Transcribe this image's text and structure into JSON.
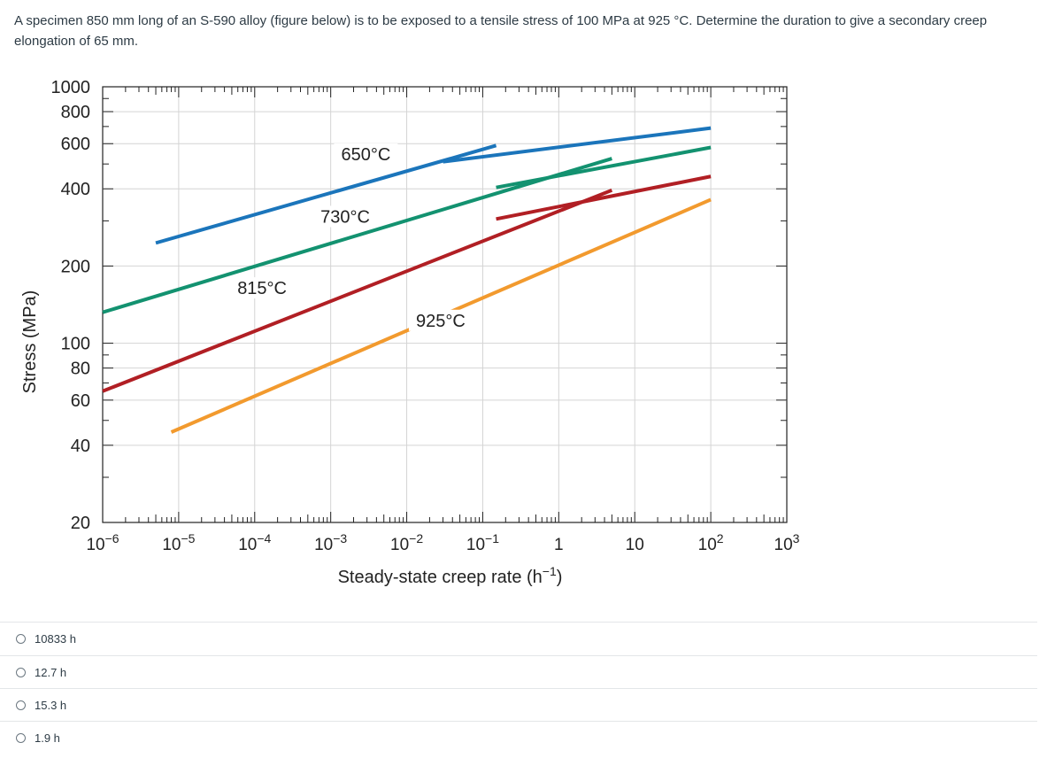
{
  "question": {
    "text": "A specimen 850 mm long of an S-590 alloy (figure below) is to be exposed to a tensile stress of 100 MPa at 925 °C. Determine the duration to give a secondary creep elongation of 65 mm."
  },
  "chart_data": {
    "type": "line",
    "xlabel": "Steady-state creep rate (h",
    "xlabel_sup": "−1",
    "xlabel_end": ")",
    "ylabel": "Stress (MPa)",
    "xscale": "log",
    "yscale": "log",
    "xlim": [
      1e-06,
      1000
    ],
    "ylim": [
      20,
      1000
    ],
    "x_ticks": [
      {
        "value": 1e-06,
        "base": "10",
        "exp": "−6"
      },
      {
        "value": 1e-05,
        "base": "10",
        "exp": "−5"
      },
      {
        "value": 0.0001,
        "base": "10",
        "exp": "−4"
      },
      {
        "value": 0.001,
        "base": "10",
        "exp": "−3"
      },
      {
        "value": 0.01,
        "base": "10",
        "exp": "−2"
      },
      {
        "value": 0.1,
        "base": "10",
        "exp": "−1"
      },
      {
        "value": 1,
        "base": "1",
        "exp": ""
      },
      {
        "value": 10,
        "base": "10",
        "exp": ""
      },
      {
        "value": 100,
        "base": "10",
        "exp": "2"
      },
      {
        "value": 1000,
        "base": "10",
        "exp": "3"
      }
    ],
    "y_ticks": [
      {
        "value": 1000,
        "label": "1000"
      },
      {
        "value": 800,
        "label": "800"
      },
      {
        "value": 600,
        "label": "600"
      },
      {
        "value": 400,
        "label": "400"
      },
      {
        "value": 200,
        "label": "200"
      },
      {
        "value": 100,
        "label": "100"
      },
      {
        "value": 80,
        "label": "80"
      },
      {
        "value": 60,
        "label": "60"
      },
      {
        "value": 40,
        "label": "40"
      },
      {
        "value": 20,
        "label": "20"
      }
    ],
    "series": [
      {
        "name": "650°C",
        "color": "#1b75bb",
        "segments": [
          {
            "points": [
              [
                5e-06,
                246
              ],
              [
                0.15,
                590
              ]
            ]
          },
          {
            "points": [
              [
                0.03,
                510
              ],
              [
                100,
                690
              ]
            ]
          }
        ]
      },
      {
        "name": "730°C",
        "color": "#139270",
        "segments": [
          {
            "points": [
              [
                1e-06,
                132
              ],
              [
                5,
                525
              ]
            ]
          },
          {
            "points": [
              [
                0.15,
                405
              ],
              [
                100,
                580
              ]
            ]
          }
        ]
      },
      {
        "name": "815°C",
        "color": "#b11f24",
        "segments": [
          {
            "points": [
              [
                1e-06,
                65
              ],
              [
                5,
                395
              ]
            ]
          },
          {
            "points": [
              [
                0.15,
                305
              ],
              [
                100,
                447
              ]
            ]
          }
        ]
      },
      {
        "name": "925°C",
        "color": "#f29a2e",
        "segments": [
          {
            "points": [
              [
                8e-06,
                45
              ],
              [
                100,
                363
              ]
            ]
          }
        ]
      }
    ],
    "annotations": [
      {
        "text": "650°C",
        "x": 0.0029,
        "y": 525
      },
      {
        "text": "730°C",
        "x": 0.00155,
        "y": 300
      },
      {
        "text": "815°C",
        "x": 0.000125,
        "y": 158
      },
      {
        "text": "925°C",
        "x": 0.028,
        "y": 118
      }
    ]
  },
  "options": [
    {
      "label": "10833 h"
    },
    {
      "label": "12.7 h"
    },
    {
      "label": "15.3 h"
    },
    {
      "label": "1.9 h"
    }
  ]
}
